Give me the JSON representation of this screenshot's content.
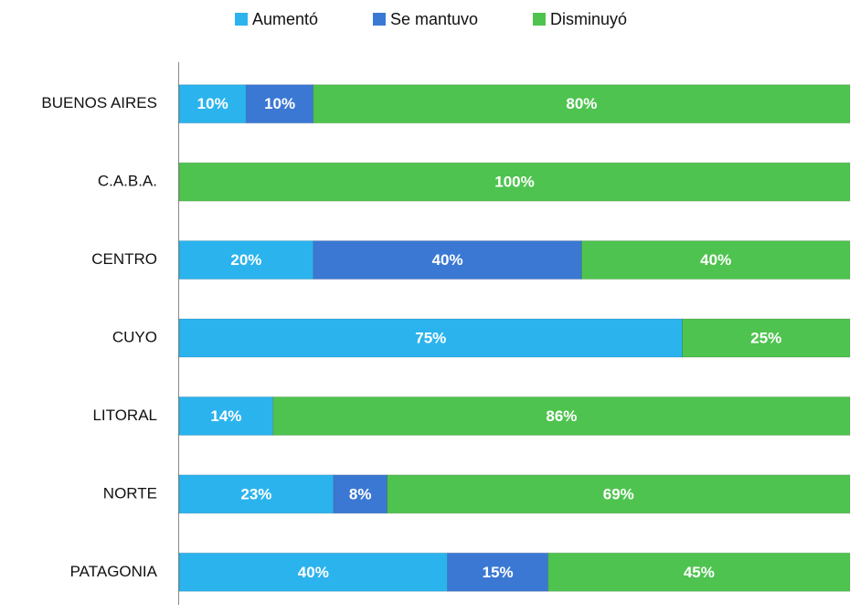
{
  "chart_data": {
    "type": "stacked_barh",
    "categories": [
      "BUENOS AIRES",
      "C.A.B.A.",
      "CENTRO",
      "CUYO",
      "LITORAL",
      "NORTE",
      "PATAGONIA"
    ],
    "xlim": [
      0,
      100
    ],
    "legend": "top",
    "series": [
      {
        "name": "Aumentó",
        "color": "#2bb3ee",
        "values": [
          10,
          0,
          20,
          75,
          14,
          23,
          40
        ],
        "value_labels": [
          "10%",
          null,
          "20%",
          "75%",
          "14%",
          "23%",
          "40%"
        ]
      },
      {
        "name": "Se mantuvo",
        "color": "#3b78d4",
        "values": [
          10,
          0,
          40,
          0,
          0,
          8,
          15
        ],
        "value_labels": [
          "10%",
          null,
          "40%",
          null,
          null,
          "8%",
          "15%"
        ]
      },
      {
        "name": "Disminuyó",
        "color": "#4fc34f",
        "values": [
          80,
          100,
          40,
          25,
          86,
          69,
          45
        ],
        "value_labels": [
          "80%",
          "100%",
          "40%",
          "25%",
          "86%",
          "69%",
          "45%"
        ]
      }
    ]
  }
}
